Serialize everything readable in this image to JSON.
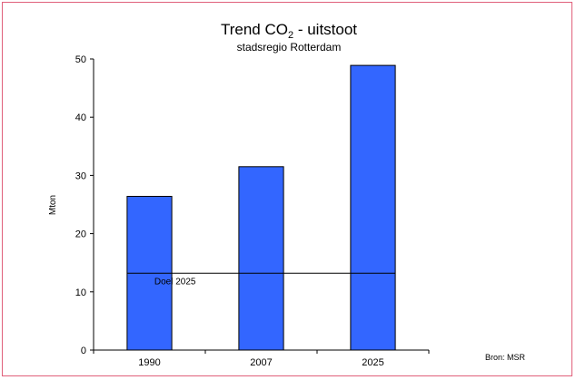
{
  "chart_data": {
    "type": "bar",
    "title_prefix": "Trend CO",
    "title_subscript": "2",
    "title_suffix": " - uitstoot",
    "subtitle": "stadsregio Rotterdam",
    "ylabel": "Mton",
    "xlabel": "",
    "categories": [
      "1990",
      "2007",
      "2025"
    ],
    "values": [
      26.4,
      31.5,
      48.9
    ],
    "ylim": [
      0,
      50
    ],
    "yticks": [
      0,
      10,
      20,
      30,
      40,
      50
    ],
    "bar_color": "#3366ff",
    "grid": false,
    "target_line": {
      "label": "Doel 2025",
      "value": 13.2
    },
    "source": "Bron: MSR"
  }
}
